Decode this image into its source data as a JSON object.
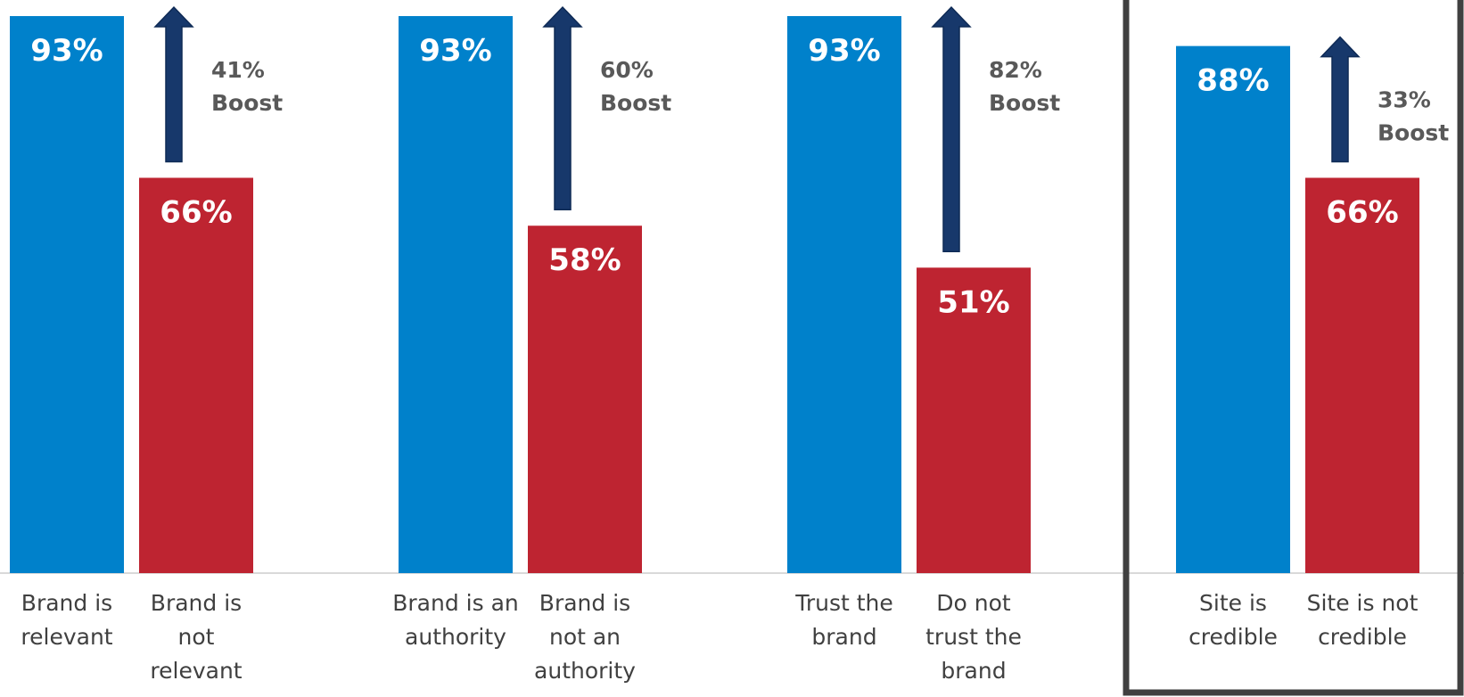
{
  "chart_data": {
    "type": "bar",
    "title": "",
    "xlabel": "",
    "ylabel": "",
    "ylim": [
      0,
      100
    ],
    "grid": false,
    "legend": "none",
    "colors": {
      "positive": "#0081CB",
      "negative": "#BE2431",
      "arrow": "#17386B",
      "frame": "#404040"
    },
    "groups": [
      {
        "bars": [
          {
            "category": [
              "Brand is",
              "relevant"
            ],
            "value": 93,
            "label": "93%",
            "type": "positive"
          },
          {
            "category": [
              "Brand is",
              "not",
              "relevant"
            ],
            "value": 66,
            "label": "66%",
            "type": "negative"
          }
        ],
        "boost": {
          "lines": [
            "41%",
            "Boost"
          ],
          "value": 41
        }
      },
      {
        "bars": [
          {
            "category": [
              "Brand is an",
              "authority"
            ],
            "value": 93,
            "label": "93%",
            "type": "positive"
          },
          {
            "category": [
              "Brand is",
              "not an",
              "authority"
            ],
            "value": 58,
            "label": "58%",
            "type": "negative"
          }
        ],
        "boost": {
          "lines": [
            "60%",
            "Boost"
          ],
          "value": 60
        }
      },
      {
        "bars": [
          {
            "category": [
              "Trust the",
              "brand"
            ],
            "value": 93,
            "label": "93%",
            "type": "positive"
          },
          {
            "category": [
              "Do not",
              "trust the",
              "brand"
            ],
            "value": 51,
            "label": "51%",
            "type": "negative"
          }
        ],
        "boost": {
          "lines": [
            "82%",
            "Boost"
          ],
          "value": 82
        }
      },
      {
        "highlighted": true,
        "bars": [
          {
            "category": [
              "Site is",
              "credible"
            ],
            "value": 88,
            "label": "88%",
            "type": "positive"
          },
          {
            "category": [
              "Site is not",
              "credible"
            ],
            "value": 66,
            "label": "66%",
            "type": "negative"
          }
        ],
        "boost": {
          "lines": [
            "33%",
            "Boost"
          ],
          "value": 33
        }
      }
    ]
  }
}
